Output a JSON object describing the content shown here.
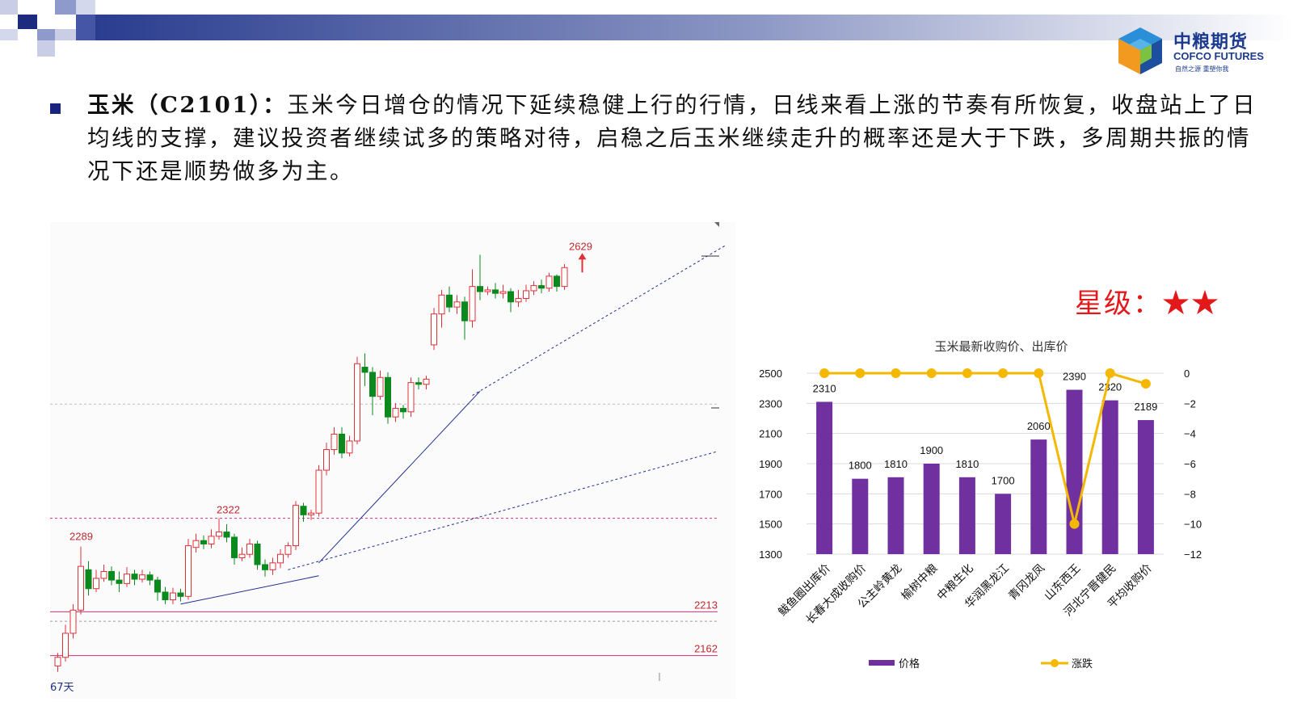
{
  "logo": {
    "name_cn": "中粮期货",
    "name_en": "COFCO FUTURES",
    "slogan": "自然之源 重塑你我"
  },
  "commentary": {
    "lead": "玉米（C2101）：",
    "text": "玉米今日增仓的情况下延续稳健上行的行情，日线来看上涨的节奏有所恢复，收盘站上了日均线的支撑，建议投资者继续试多的策略对待，启稳之后玉米继续走升的概率还是大于下跌，多周期共振的情况下还是顺势做多为主。"
  },
  "rating": {
    "label": "星级：",
    "stars": "★★"
  },
  "chart_data": [
    {
      "type": "candlestick",
      "price_labels": {
        "high_1": "2289",
        "high_2": "2322",
        "high_3": "2629",
        "level_1": "2213",
        "level_2": "2162"
      },
      "period_label": "67天",
      "levels": [
        2213,
        2162,
        2322
      ],
      "ylim": [
        2140,
        2650
      ],
      "bull_color": "#e0303a",
      "bear_color": "#0a8a1c",
      "candles": [
        [
          2150,
          2160,
          2143,
          2165
        ],
        [
          2160,
          2188,
          2155,
          2198
        ],
        [
          2188,
          2215,
          2182,
          2222
        ],
        [
          2215,
          2266,
          2210,
          2289
        ],
        [
          2262,
          2240,
          2232,
          2272
        ],
        [
          2240,
          2252,
          2236,
          2262
        ],
        [
          2252,
          2260,
          2248,
          2268
        ],
        [
          2260,
          2250,
          2244,
          2266
        ],
        [
          2250,
          2246,
          2236,
          2260
        ],
        [
          2246,
          2257,
          2242,
          2265
        ],
        [
          2257,
          2251,
          2244,
          2262
        ],
        [
          2251,
          2256,
          2247,
          2262
        ],
        [
          2256,
          2250,
          2244,
          2260
        ],
        [
          2250,
          2236,
          2226,
          2254
        ],
        [
          2236,
          2227,
          2222,
          2242
        ],
        [
          2227,
          2235,
          2222,
          2241
        ],
        [
          2235,
          2231,
          2225,
          2240
        ],
        [
          2231,
          2290,
          2227,
          2298
        ],
        [
          2288,
          2296,
          2282,
          2304
        ],
        [
          2296,
          2292,
          2286,
          2302
        ],
        [
          2292,
          2301,
          2287,
          2309
        ],
        [
          2301,
          2306,
          2297,
          2322
        ],
        [
          2306,
          2300,
          2294,
          2315
        ],
        [
          2300,
          2276,
          2268,
          2304
        ],
        [
          2276,
          2280,
          2272,
          2288
        ],
        [
          2280,
          2292,
          2276,
          2298
        ],
        [
          2292,
          2268,
          2262,
          2296
        ],
        [
          2268,
          2262,
          2254,
          2274
        ],
        [
          2262,
          2270,
          2256,
          2276
        ],
        [
          2270,
          2280,
          2264,
          2286
        ],
        [
          2280,
          2290,
          2276,
          2294
        ],
        [
          2290,
          2337,
          2285,
          2342
        ],
        [
          2336,
          2326,
          2318,
          2340
        ],
        [
          2326,
          2328,
          2320,
          2332
        ],
        [
          2328,
          2378,
          2324,
          2384
        ],
        [
          2378,
          2402,
          2372,
          2410
        ],
        [
          2402,
          2420,
          2396,
          2428
        ],
        [
          2420,
          2398,
          2392,
          2428
        ],
        [
          2398,
          2412,
          2394,
          2418
        ],
        [
          2412,
          2502,
          2408,
          2510
        ],
        [
          2498,
          2492,
          2476,
          2514
        ],
        [
          2492,
          2464,
          2442,
          2498
        ],
        [
          2464,
          2486,
          2460,
          2494
        ],
        [
          2486,
          2440,
          2432,
          2492
        ],
        [
          2440,
          2450,
          2434,
          2456
        ],
        [
          2450,
          2446,
          2438,
          2454
        ],
        [
          2446,
          2480,
          2440,
          2486
        ],
        [
          2480,
          2478,
          2472,
          2486
        ],
        [
          2478,
          2484,
          2472,
          2488
        ],
        [
          2524,
          2560,
          2518,
          2567
        ],
        [
          2560,
          2582,
          2544,
          2588
        ],
        [
          2582,
          2568,
          2562,
          2592
        ],
        [
          2568,
          2574,
          2560,
          2582
        ],
        [
          2574,
          2552,
          2530,
          2580
        ],
        [
          2552,
          2592,
          2544,
          2612
        ],
        [
          2592,
          2586,
          2576,
          2629
        ],
        [
          2586,
          2588,
          2582,
          2592
        ],
        [
          2588,
          2584,
          2578,
          2596
        ],
        [
          2584,
          2586,
          2578,
          2594
        ],
        [
          2586,
          2574,
          2562,
          2590
        ],
        [
          2574,
          2578,
          2568,
          2588
        ],
        [
          2578,
          2587,
          2574,
          2594
        ],
        [
          2587,
          2593,
          2582,
          2598
        ],
        [
          2593,
          2590,
          2584,
          2600
        ],
        [
          2590,
          2604,
          2586,
          2608
        ],
        [
          2604,
          2592,
          2586,
          2606
        ],
        [
          2592,
          2614,
          2588,
          2618
        ]
      ]
    },
    {
      "type": "bar",
      "title": "玉米最新收购价、出库价",
      "categories": [
        "鲅鱼圈出库价",
        "长春大成收购价",
        "公主岭黄龙",
        "榆树中粮",
        "中粮生化",
        "华润黑龙江",
        "青冈龙凤",
        "山东西王",
        "河北宁晋健民",
        "平均收购价"
      ],
      "series": [
        {
          "name": "价格",
          "type": "bar",
          "axis": "left",
          "color": "#7030a0",
          "values": [
            2310,
            1800,
            1810,
            1900,
            1810,
            1700,
            2060,
            2390,
            2320,
            2189
          ]
        },
        {
          "name": "涨跌",
          "type": "line",
          "axis": "right",
          "color": "#f5b800",
          "values": [
            0,
            0,
            0,
            0,
            0,
            0,
            0,
            -10,
            0,
            -0.7
          ]
        }
      ],
      "yticks_left": [
        "2500",
        "2300",
        "2100",
        "1900",
        "1700",
        "1500",
        "1300"
      ],
      "ylim_left": [
        1300,
        2500
      ],
      "yticks_right": [
        "0",
        "−2",
        "−4",
        "−6",
        "−8",
        "−10",
        "−12"
      ],
      "ylim_right": [
        -12,
        0
      ],
      "grid": true,
      "legend": "bottom"
    }
  ]
}
